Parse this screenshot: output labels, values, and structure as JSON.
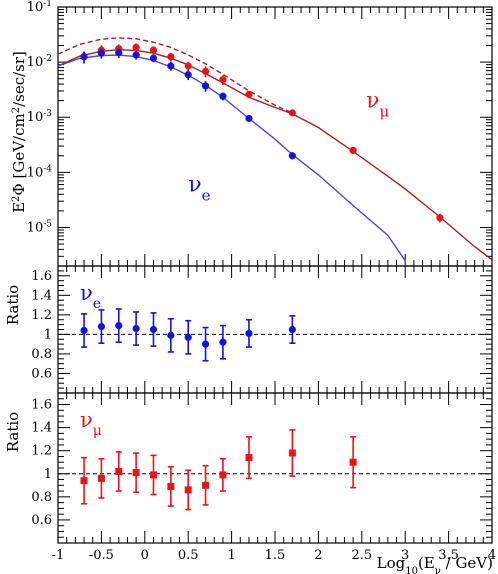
{
  "chart_data": [
    {
      "type": "scatter",
      "title": "",
      "xlabel": "",
      "ylabel": "E²Φ [GeV/cm²/sec/sr]",
      "ylabel_parts": {
        "pre": "E",
        "sup1": "2",
        "mid": "Φ [GeV/cm",
        "sup2": "2",
        "post": "/sec/sr]"
      },
      "xlim": [
        -1,
        4
      ],
      "ylim": [
        2e-06,
        0.1
      ],
      "yscale": "log",
      "ytick_labels": [
        {
          "value": 0.1,
          "base": "10",
          "exp": "-1"
        },
        {
          "value": 0.01,
          "base": "10",
          "exp": "-2"
        },
        {
          "value": 0.001,
          "base": "10",
          "exp": "-3"
        },
        {
          "value": 0.0001,
          "base": "10",
          "exp": "-4"
        },
        {
          "value": 1e-05,
          "base": "10",
          "exp": "-5"
        }
      ],
      "series_labels": [
        {
          "key": "numu",
          "base": "ν",
          "sub": "μ",
          "color": "#e8141c",
          "x": 2.55,
          "y": 0.0015
        },
        {
          "key": "nue",
          "base": "ν",
          "sub": "e",
          "color": "#1414dc",
          "x": 0.5,
          "y": 4.5e-05
        }
      ],
      "series": [
        {
          "key": "numu",
          "color": "#e8141c",
          "points": [
            [
              -0.7,
              0.0125,
              0.25
            ],
            [
              -0.5,
              0.0165,
              0.22
            ],
            [
              -0.3,
              0.0175,
              0.2
            ],
            [
              -0.1,
              0.0185,
              0.18
            ],
            [
              0.1,
              0.0165,
              0.16
            ],
            [
              0.3,
              0.0125,
              0.18
            ],
            [
              0.5,
              0.0085,
              0.2
            ],
            [
              0.7,
              0.0068,
              0.22
            ],
            [
              0.9,
              0.0048,
              0.2
            ],
            [
              1.2,
              0.0026,
              0.14
            ],
            [
              1.7,
              0.0012,
              0.12
            ],
            [
              2.4,
              0.00025,
              0.14
            ],
            [
              3.4,
              1.5e-05,
              0.18
            ]
          ]
        },
        {
          "key": "nue",
          "color": "#1414dc",
          "points": [
            [
              -0.7,
              0.0125,
              0.22
            ],
            [
              -0.5,
              0.0145,
              0.2
            ],
            [
              -0.3,
              0.0148,
              0.2
            ],
            [
              -0.1,
              0.0135,
              0.18
            ],
            [
              0.1,
              0.0118,
              0.16
            ],
            [
              0.3,
              0.0085,
              0.18
            ],
            [
              0.5,
              0.0059,
              0.2
            ],
            [
              0.7,
              0.0037,
              0.22
            ],
            [
              0.9,
              0.0024,
              0.16
            ],
            [
              1.2,
              0.00095,
              0.12
            ],
            [
              1.7,
              0.0002,
              0.14
            ]
          ]
        }
      ],
      "model_curves": [
        {
          "key": "numu-model",
          "color": "#a0241c",
          "style": "solid",
          "points": [
            [
              -1,
              0.0085
            ],
            [
              -0.75,
              0.0128
            ],
            [
              -0.5,
              0.0158
            ],
            [
              -0.3,
              0.0168
            ],
            [
              -0.1,
              0.0163
            ],
            [
              0.1,
              0.0145
            ],
            [
              0.3,
              0.0118
            ],
            [
              0.5,
              0.0089
            ],
            [
              0.7,
              0.0062
            ],
            [
              0.9,
              0.0042
            ],
            [
              1.2,
              0.0023
            ],
            [
              1.5,
              0.0015
            ],
            [
              1.7,
              0.00115
            ],
            [
              2.0,
              0.00065
            ],
            [
              2.4,
              0.00024
            ],
            [
              2.8,
              8.5e-05
            ],
            [
              3.0,
              5e-05
            ],
            [
              3.4,
              1.55e-05
            ],
            [
              3.8,
              4.5e-06
            ],
            [
              4.0,
              2.6e-06
            ]
          ]
        },
        {
          "key": "numu-upper",
          "color": "#a0241c",
          "style": "dashed",
          "points": [
            [
              -1,
              0.014
            ],
            [
              -0.75,
              0.021
            ],
            [
              -0.5,
              0.026
            ],
            [
              -0.3,
              0.0275
            ],
            [
              -0.1,
              0.0265
            ],
            [
              0.1,
              0.023
            ],
            [
              0.3,
              0.0185
            ],
            [
              0.5,
              0.0135
            ],
            [
              0.7,
              0.0093
            ],
            [
              0.9,
              0.006
            ],
            [
              1.2,
              0.003
            ],
            [
              1.5,
              0.00165
            ],
            [
              1.7,
              0.0012
            ]
          ]
        },
        {
          "key": "nue-model",
          "color": "#4a4ac8",
          "style": "solid",
          "points": [
            [
              -1,
              0.0085
            ],
            [
              -0.75,
              0.0117
            ],
            [
              -0.5,
              0.0132
            ],
            [
              -0.3,
              0.0134
            ],
            [
              -0.1,
              0.0126
            ],
            [
              0.1,
              0.0107
            ],
            [
              0.3,
              0.0082
            ],
            [
              0.5,
              0.0058
            ],
            [
              0.7,
              0.0038
            ],
            [
              0.9,
              0.0023
            ],
            [
              1.2,
              0.00095
            ],
            [
              1.5,
              0.0004
            ],
            [
              1.7,
              0.00021
            ],
            [
              2.0,
              9e-05
            ],
            [
              2.4,
              2.5e-05
            ],
            [
              2.8,
              7.2e-06
            ],
            [
              3.0,
              2.5e-06
            ]
          ]
        }
      ]
    },
    {
      "type": "scatter",
      "title": "",
      "ylabel": "Ratio",
      "xlim": [
        -1,
        4
      ],
      "ylim": [
        0.4,
        1.7
      ],
      "ytick_labels": [
        "0.6",
        "0.8",
        "1",
        "1.2",
        "1.4",
        "1.6"
      ],
      "reference_line": 1,
      "series_label": {
        "base": "ν",
        "sub": "e",
        "color": "#1414dc"
      },
      "series": [
        {
          "key": "nue",
          "color": "#1414dc",
          "marker": "circle",
          "points": [
            [
              -0.7,
              1.04,
              0.17
            ],
            [
              -0.5,
              1.08,
              0.17
            ],
            [
              -0.3,
              1.09,
              0.17
            ],
            [
              -0.1,
              1.06,
              0.17
            ],
            [
              0.1,
              1.05,
              0.17
            ],
            [
              0.3,
              0.99,
              0.17
            ],
            [
              0.5,
              0.97,
              0.17
            ],
            [
              0.7,
              0.9,
              0.17
            ],
            [
              0.9,
              0.92,
              0.17
            ],
            [
              1.2,
              1.01,
              0.14
            ],
            [
              1.7,
              1.05,
              0.14
            ]
          ]
        }
      ]
    },
    {
      "type": "scatter",
      "title": "",
      "xlabel": "Log10(Eν / GeV)",
      "xlabel_parts": {
        "pre": "Log",
        "sub1": "10",
        "mid": "(E",
        "sub2": "ν",
        "post": " / GeV)"
      },
      "ylabel": "Ratio",
      "xlim": [
        -1,
        4
      ],
      "ylim": [
        0.4,
        1.7
      ],
      "xtick_labels": [
        "-1",
        "-0.5",
        "0",
        "0.5",
        "1",
        "1.5",
        "2",
        "2.5",
        "3",
        "3.5",
        "4"
      ],
      "ytick_labels": [
        "0.6",
        "0.8",
        "1",
        "1.2",
        "1.4",
        "1.6"
      ],
      "reference_line": 1,
      "series_label": {
        "base": "ν",
        "sub": "μ",
        "color": "#e8141c"
      },
      "series": [
        {
          "key": "numu",
          "color": "#e8141c",
          "marker": "square",
          "points": [
            [
              -0.7,
              0.94,
              0.2
            ],
            [
              -0.5,
              0.96,
              0.17
            ],
            [
              -0.3,
              1.02,
              0.17
            ],
            [
              -0.1,
              1.01,
              0.17
            ],
            [
              0.1,
              0.99,
              0.17
            ],
            [
              0.3,
              0.89,
              0.17
            ],
            [
              0.5,
              0.86,
              0.17
            ],
            [
              0.7,
              0.9,
              0.17
            ],
            [
              0.9,
              0.99,
              0.14
            ],
            [
              1.2,
              1.14,
              0.18
            ],
            [
              1.7,
              1.18,
              0.2
            ],
            [
              2.4,
              1.1,
              0.22
            ]
          ]
        }
      ]
    }
  ]
}
